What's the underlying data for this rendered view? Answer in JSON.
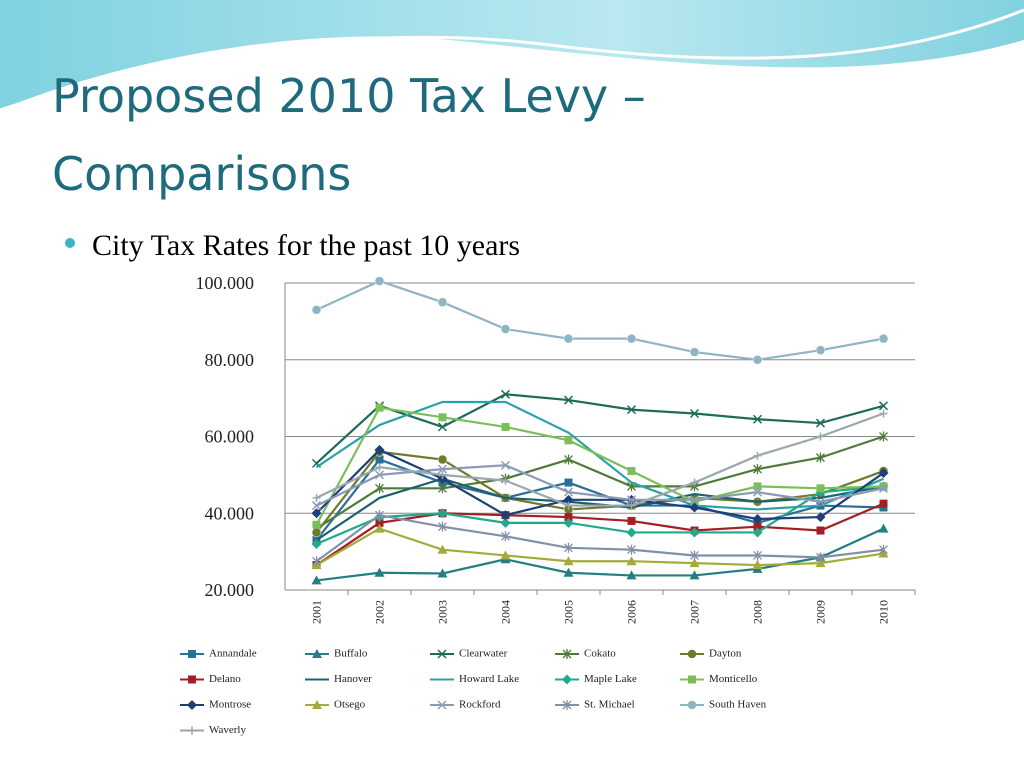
{
  "slide": {
    "title_lines": [
      "Proposed 2010 Tax Levy –",
      "Comparisons"
    ],
    "bullet": "City Tax Rates for the past 10 years"
  },
  "chart_data": {
    "type": "line",
    "categories": [
      "2001",
      "2002",
      "2003",
      "2004",
      "2005",
      "2006",
      "2007",
      "2008",
      "2009",
      "2010"
    ],
    "ylim": [
      20,
      100
    ],
    "yticks": [
      {
        "value": 20,
        "label": "20.000"
      },
      {
        "value": 40,
        "label": "40.000"
      },
      {
        "value": 60,
        "label": "60.000"
      },
      {
        "value": 80,
        "label": "80.000"
      },
      {
        "value": 100,
        "label": "100.000"
      }
    ],
    "grid": true,
    "series": [
      {
        "name": "Annandale",
        "color": "#2a6f97",
        "marker": "square",
        "values": [
          33,
          54,
          48,
          44,
          48,
          42,
          42,
          37.5,
          42,
          41.5
        ]
      },
      {
        "name": "Buffalo",
        "color": "#237f84",
        "marker": "triangle",
        "values": [
          22.5,
          24.5,
          24.3,
          28,
          24.5,
          23.8,
          23.8,
          25.5,
          28.5,
          36
        ]
      },
      {
        "name": "Clearwater",
        "color": "#1f6b5a",
        "marker": "x",
        "values": [
          53,
          68,
          62.5,
          71,
          69.5,
          67,
          66,
          64.5,
          63.5,
          68
        ]
      },
      {
        "name": "Cokato",
        "color": "#4f7a3a",
        "marker": "asterisk",
        "values": [
          36,
          46.5,
          46.5,
          49,
          54,
          47,
          47,
          51.5,
          54.5,
          60
        ]
      },
      {
        "name": "Dayton",
        "color": "#6f7a2a",
        "marker": "circle",
        "values": [
          35,
          56,
          54,
          44,
          41,
          42,
          44,
          43,
          45,
          51
        ]
      },
      {
        "name": "Delano",
        "color": "#a31f24",
        "marker": "square",
        "values": [
          26.5,
          37.5,
          40,
          39.5,
          39,
          38,
          35.5,
          36.5,
          35.5,
          42.5
        ]
      },
      {
        "name": "Hanover",
        "color": "#1d6070",
        "marker": "none",
        "values": [
          33,
          44,
          49,
          44,
          43,
          41.5,
          45,
          43,
          44,
          47
        ]
      },
      {
        "name": "Howard Lake",
        "color": "#2aa1a8",
        "marker": "none",
        "values": [
          52,
          63,
          69,
          69,
          61,
          48,
          42,
          41,
          42,
          49
        ]
      },
      {
        "name": "Maple Lake",
        "color": "#22a98c",
        "marker": "diamond",
        "values": [
          32,
          39,
          40,
          37.5,
          37.5,
          35,
          35,
          35,
          45.5,
          47
        ]
      },
      {
        "name": "Monticello",
        "color": "#7cbf5a",
        "marker": "square",
        "values": [
          37,
          67.5,
          65,
          62.5,
          59,
          51,
          43,
          47,
          46.5,
          47
        ]
      },
      {
        "name": "Montrose",
        "color": "#1f3f7a",
        "marker": "diamond",
        "values": [
          40,
          56.5,
          49,
          39.5,
          43.5,
          43.5,
          41.5,
          38.5,
          39,
          50.5
        ]
      },
      {
        "name": "Otsego",
        "color": "#a3ab3a",
        "marker": "triangle",
        "values": [
          26.5,
          36,
          30.5,
          29,
          27.5,
          27.5,
          27,
          26.5,
          27,
          29.5
        ]
      },
      {
        "name": "Rockford",
        "color": "#8c9bb5",
        "marker": "x",
        "values": [
          42,
          50,
          51.5,
          52.5,
          45.5,
          43.5,
          43.5,
          45.5,
          43,
          46.5
        ]
      },
      {
        "name": "St. Michael",
        "color": "#8190a8",
        "marker": "asterisk",
        "values": [
          27.5,
          39.5,
          36.5,
          34,
          31,
          30.5,
          29,
          29,
          28.5,
          30.5
        ]
      },
      {
        "name": "South Haven",
        "color": "#8fb5c4",
        "marker": "circle",
        "values": [
          93,
          100.5,
          95,
          88,
          85.5,
          85.5,
          82,
          80,
          82.5,
          85.5
        ]
      },
      {
        "name": "Waverly",
        "color": "#9aa8ad",
        "marker": "plus",
        "values": [
          44,
          52,
          50,
          48.5,
          42,
          42,
          48,
          55,
          60,
          66
        ]
      }
    ]
  }
}
